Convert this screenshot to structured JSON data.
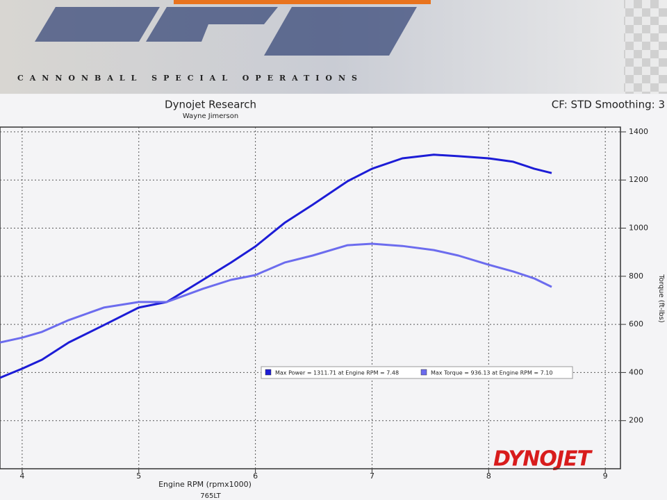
{
  "header": {
    "brand_text": "CANNONBALL SPECIAL OPERATIONS"
  },
  "chart_data": {
    "type": "line",
    "title": "Dynojet Research",
    "subtitle": "Wayne Jimerson",
    "annotation": "CF: STD Smoothing: 3",
    "x_label": "Engine RPM (rpmx1000)",
    "y_label": "Torque (ft-lbs)",
    "footer_label": "765LT",
    "watermark": "DYNOJET",
    "xlim": [
      3.81,
      9.13
    ],
    "xticks": [
      4,
      5,
      6,
      7,
      8,
      9
    ],
    "ylim": [
      0,
      1420
    ],
    "yticks": [
      200,
      400,
      600,
      800,
      1000,
      1200,
      1400
    ],
    "y_axis_side": "right",
    "grid": true,
    "x": [
      3.81,
      4.0,
      4.17,
      4.4,
      4.7,
      5.0,
      5.24,
      5.55,
      5.79,
      6.0,
      6.25,
      6.49,
      6.79,
      7.0,
      7.26,
      7.53,
      7.74,
      8.0,
      8.21,
      8.39,
      8.54
    ],
    "series": [
      {
        "name": "Max Power = 1311.71 at Engine RPM = 7.48",
        "color": "#1c1cd6",
        "values": [
          378,
          416,
          453,
          525,
          597,
          670,
          693,
          785,
          857,
          924,
          1022,
          1097,
          1195,
          1247,
          1290,
          1305,
          1299,
          1290,
          1276,
          1247,
          1229
        ]
      },
      {
        "name": "Max Torque = 936.13 at Engine RPM = 7.10",
        "color": "#6c6cee",
        "values": [
          525,
          545,
          569,
          618,
          670,
          693,
          693,
          748,
          785,
          805,
          857,
          886,
          929,
          935,
          926,
          909,
          886,
          848,
          820,
          791,
          756
        ]
      }
    ]
  }
}
